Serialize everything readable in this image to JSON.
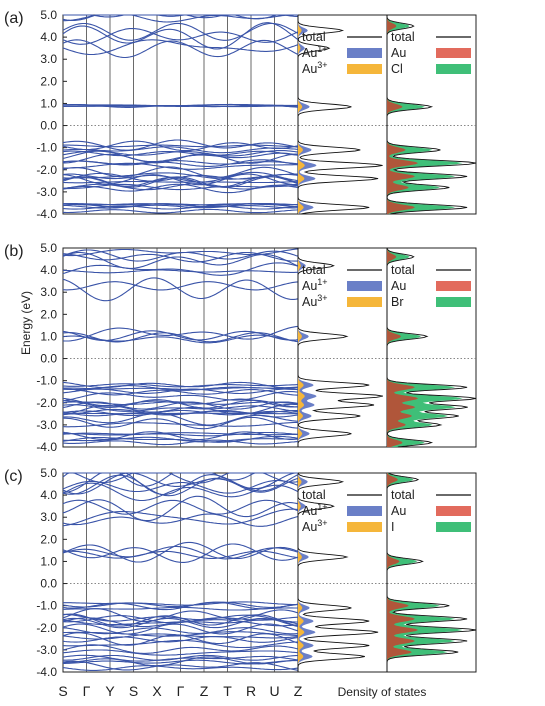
{
  "chart_data": {
    "type": "line",
    "ylabel": "Energy (eV)",
    "xlabel_dos": "Density of states",
    "k_path": [
      "S",
      "Γ",
      "Y",
      "S",
      "X",
      "Γ",
      "Z",
      "T",
      "R",
      "U",
      "Z"
    ],
    "ylim": [
      -4.0,
      5.0
    ],
    "yticks": [
      "-4.0",
      "-3.0",
      "-2.0",
      "-1.0",
      "0.0",
      "1.0",
      "2.0",
      "3.0",
      "4.0",
      "5.0"
    ],
    "panels": [
      {
        "label": "(a)",
        "band_groups": [
          {
            "center": 4.8,
            "spread": 0.35,
            "amp": 0.25,
            "count": 3
          },
          {
            "center": 4.3,
            "spread": 0.3,
            "amp": 0.6,
            "count": 3
          },
          {
            "center": 3.5,
            "spread": 0.2,
            "amp": 0.6,
            "count": 2
          },
          {
            "center": 0.9,
            "spread": 0.1,
            "amp": 0.05,
            "count": 4
          },
          {
            "center": -1.0,
            "spread": 0.2,
            "amp": 0.2,
            "count": 4
          },
          {
            "center": -1.9,
            "spread": 0.7,
            "amp": 0.25,
            "count": 14
          },
          {
            "center": -2.7,
            "spread": 0.15,
            "amp": 0.15,
            "count": 4
          },
          {
            "center": -3.7,
            "spread": 0.2,
            "amp": 0.1,
            "count": 6
          }
        ],
        "dos_left": {
          "legend": [
            "total",
            "Au1+",
            "Au3+"
          ],
          "peaks": [
            [
              0.85,
              0.6
            ],
            [
              -1.1,
              0.7
            ],
            [
              -1.8,
              0.95
            ],
            [
              -2.4,
              0.9
            ],
            [
              -3.7,
              0.8
            ],
            [
              4.3,
              0.5
            ],
            [
              3.5,
              0.35
            ]
          ]
        },
        "dos_right": {
          "legend": [
            "total",
            "Au",
            "Cl"
          ],
          "peaks": [
            [
              0.85,
              0.5
            ],
            [
              -1.1,
              0.6
            ],
            [
              -1.7,
              1.0
            ],
            [
              -2.3,
              0.9
            ],
            [
              -2.8,
              0.7
            ],
            [
              -3.7,
              0.9
            ],
            [
              4.5,
              0.3
            ]
          ]
        }
      },
      {
        "label": "(b)",
        "band_groups": [
          {
            "center": 4.8,
            "spread": 0.3,
            "amp": 0.25,
            "count": 3
          },
          {
            "center": 4.2,
            "spread": 0.3,
            "amp": 0.6,
            "count": 3
          },
          {
            "center": 3.2,
            "spread": 0.3,
            "amp": 0.5,
            "count": 2
          },
          {
            "center": 1.0,
            "spread": 0.2,
            "amp": 0.3,
            "count": 4
          },
          {
            "center": -1.2,
            "spread": 0.2,
            "amp": 0.2,
            "count": 4
          },
          {
            "center": -2.2,
            "spread": 0.8,
            "amp": 0.25,
            "count": 16
          },
          {
            "center": -3.6,
            "spread": 0.3,
            "amp": 0.2,
            "count": 6
          }
        ],
        "dos_left": {
          "legend": [
            "total",
            "Au1+",
            "Au3+"
          ],
          "peaks": [
            [
              1.0,
              0.55
            ],
            [
              -1.2,
              0.8
            ],
            [
              -1.7,
              0.95
            ],
            [
              -2.1,
              0.85
            ],
            [
              -2.6,
              0.7
            ],
            [
              -3.4,
              0.6
            ],
            [
              4.2,
              0.4
            ]
          ]
        },
        "dos_right": {
          "legend": [
            "total",
            "Au",
            "Br"
          ],
          "peaks": [
            [
              1.0,
              0.45
            ],
            [
              -1.3,
              0.9
            ],
            [
              -1.8,
              1.0
            ],
            [
              -2.2,
              0.9
            ],
            [
              -2.6,
              0.8
            ],
            [
              -3.0,
              0.6
            ],
            [
              -3.8,
              0.5
            ],
            [
              4.6,
              0.3
            ]
          ]
        }
      },
      {
        "label": "(c)",
        "band_groups": [
          {
            "center": 4.5,
            "spread": 0.5,
            "amp": 0.5,
            "count": 7
          },
          {
            "center": 3.2,
            "spread": 0.4,
            "amp": 0.6,
            "count": 4
          },
          {
            "center": 1.5,
            "spread": 0.4,
            "amp": 0.4,
            "count": 4
          },
          {
            "center": -1.0,
            "spread": 0.15,
            "amp": 0.15,
            "count": 4
          },
          {
            "center": -2.1,
            "spread": 0.7,
            "amp": 0.25,
            "count": 14
          },
          {
            "center": -3.4,
            "spread": 0.5,
            "amp": 0.2,
            "count": 8
          }
        ],
        "dos_left": {
          "legend": [
            "total",
            "Au1+",
            "Au3+"
          ],
          "peaks": [
            [
              1.2,
              0.55
            ],
            [
              -1.1,
              0.6
            ],
            [
              -1.7,
              0.8
            ],
            [
              -2.2,
              0.9
            ],
            [
              -2.8,
              0.8
            ],
            [
              -3.3,
              0.75
            ],
            [
              4.6,
              0.5
            ],
            [
              3.5,
              0.4
            ]
          ]
        },
        "dos_right": {
          "legend": [
            "total",
            "Au",
            "I"
          ],
          "peaks": [
            [
              1.0,
              0.4
            ],
            [
              -1.0,
              0.7
            ],
            [
              -1.6,
              0.9
            ],
            [
              -2.1,
              1.0
            ],
            [
              -2.6,
              0.9
            ],
            [
              -3.1,
              0.8
            ],
            [
              4.7,
              0.35
            ]
          ]
        }
      }
    ],
    "colors": {
      "band": "#3a54a8",
      "total": "#111111",
      "au1": "#6a7fc7",
      "au3": "#f5b63a",
      "au": "#e26b5d",
      "halide": "#3fbf78",
      "au_dark": "#b0563a"
    }
  }
}
